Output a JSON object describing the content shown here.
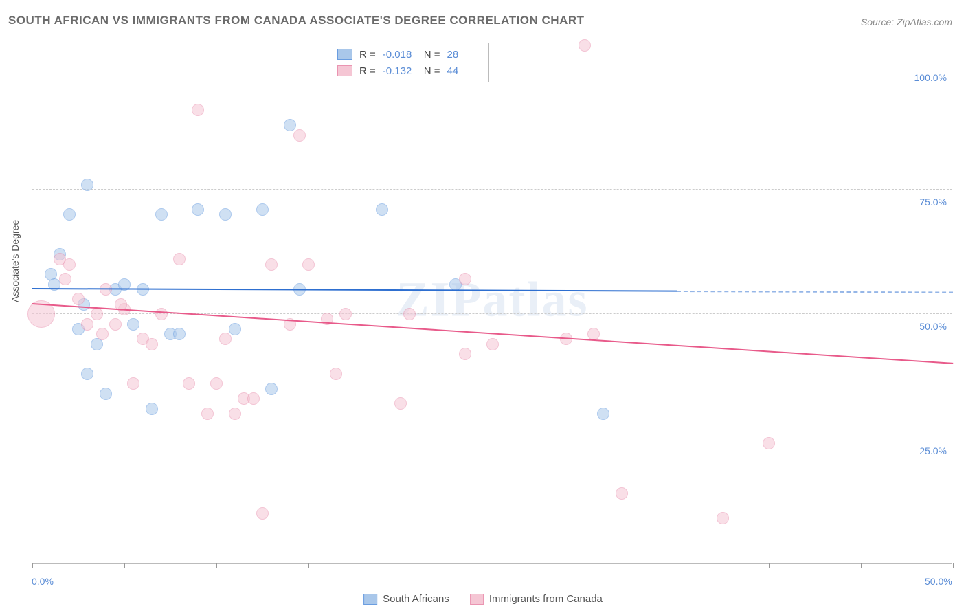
{
  "title": "SOUTH AFRICAN VS IMMIGRANTS FROM CANADA ASSOCIATE'S DEGREE CORRELATION CHART",
  "source": "Source: ZipAtlas.com",
  "watermark": "ZIPatlas",
  "y_axis_title": "Associate's Degree",
  "chart": {
    "type": "scatter",
    "background_color": "#ffffff",
    "grid_color": "#cccccc",
    "axis_color": "#bbbbbb",
    "text_color_axis": "#5b8dd6",
    "title_color": "#6b6b6b",
    "title_fontsize": 17,
    "axis_fontsize": 14,
    "xlim": [
      0,
      50
    ],
    "ylim": [
      0,
      105
    ],
    "y_gridlines": [
      25,
      50,
      75,
      100
    ],
    "y_labels": [
      "25.0%",
      "50.0%",
      "75.0%",
      "100.0%"
    ],
    "x_ticks": [
      0,
      5,
      10,
      15,
      20,
      25,
      30,
      35,
      40,
      45,
      50
    ],
    "x_labels_shown": {
      "0": "0.0%",
      "50": "50.0%"
    },
    "marker_radius": 9,
    "marker_opacity": 0.55,
    "series": [
      {
        "name": "South Africans",
        "color_fill": "#a9c7ea",
        "color_stroke": "#6a9de0",
        "R": "-0.018",
        "N": "28",
        "trend": {
          "x1": 0,
          "y1": 55,
          "x2": 35,
          "y2": 54.5,
          "color": "#2e6fd0",
          "dash_to_x": 50
        },
        "points": [
          {
            "x": 1.0,
            "y": 58
          },
          {
            "x": 1.2,
            "y": 56
          },
          {
            "x": 2.0,
            "y": 70
          },
          {
            "x": 3.0,
            "y": 76
          },
          {
            "x": 2.5,
            "y": 47
          },
          {
            "x": 3.0,
            "y": 38
          },
          {
            "x": 3.5,
            "y": 44
          },
          {
            "x": 4.0,
            "y": 34
          },
          {
            "x": 4.5,
            "y": 55
          },
          {
            "x": 5.0,
            "y": 56
          },
          {
            "x": 6.0,
            "y": 55
          },
          {
            "x": 6.5,
            "y": 31
          },
          {
            "x": 7.0,
            "y": 70
          },
          {
            "x": 7.5,
            "y": 46
          },
          {
            "x": 8.0,
            "y": 46
          },
          {
            "x": 9.0,
            "y": 71
          },
          {
            "x": 10.5,
            "y": 70
          },
          {
            "x": 12.5,
            "y": 71
          },
          {
            "x": 13.0,
            "y": 35
          },
          {
            "x": 14.0,
            "y": 88
          },
          {
            "x": 14.5,
            "y": 55
          },
          {
            "x": 19.0,
            "y": 71
          },
          {
            "x": 23.0,
            "y": 56
          },
          {
            "x": 31.0,
            "y": 30
          },
          {
            "x": 1.5,
            "y": 62
          },
          {
            "x": 5.5,
            "y": 48
          },
          {
            "x": 2.8,
            "y": 52
          },
          {
            "x": 11.0,
            "y": 47
          }
        ]
      },
      {
        "name": "Immigrants from Canada",
        "color_fill": "#f5c6d4",
        "color_stroke": "#ea94b1",
        "R": "-0.132",
        "N": "44",
        "trend": {
          "x1": 0,
          "y1": 52,
          "x2": 50,
          "y2": 40,
          "color": "#e85a8a"
        },
        "points": [
          {
            "x": 0.5,
            "y": 50,
            "r": 20
          },
          {
            "x": 1.5,
            "y": 61
          },
          {
            "x": 2.0,
            "y": 60
          },
          {
            "x": 2.5,
            "y": 53
          },
          {
            "x": 3.0,
            "y": 48
          },
          {
            "x": 3.5,
            "y": 50
          },
          {
            "x": 4.0,
            "y": 55
          },
          {
            "x": 4.5,
            "y": 48
          },
          {
            "x": 5.0,
            "y": 51
          },
          {
            "x": 5.5,
            "y": 36
          },
          {
            "x": 6.0,
            "y": 45
          },
          {
            "x": 6.5,
            "y": 44
          },
          {
            "x": 8.0,
            "y": 61
          },
          {
            "x": 8.5,
            "y": 36
          },
          {
            "x": 9.0,
            "y": 91
          },
          {
            "x": 9.5,
            "y": 30
          },
          {
            "x": 10.0,
            "y": 36
          },
          {
            "x": 10.5,
            "y": 45
          },
          {
            "x": 11.0,
            "y": 30
          },
          {
            "x": 11.5,
            "y": 33
          },
          {
            "x": 12.0,
            "y": 33
          },
          {
            "x": 12.5,
            "y": 10
          },
          {
            "x": 13.0,
            "y": 60
          },
          {
            "x": 14.0,
            "y": 48
          },
          {
            "x": 14.5,
            "y": 86
          },
          {
            "x": 15.0,
            "y": 60
          },
          {
            "x": 16.0,
            "y": 49
          },
          {
            "x": 16.5,
            "y": 38
          },
          {
            "x": 17.0,
            "y": 50
          },
          {
            "x": 20.0,
            "y": 32
          },
          {
            "x": 20.5,
            "y": 50
          },
          {
            "x": 23.5,
            "y": 42
          },
          {
            "x": 23.5,
            "y": 57
          },
          {
            "x": 25.0,
            "y": 44
          },
          {
            "x": 29.0,
            "y": 45
          },
          {
            "x": 30.0,
            "y": 104
          },
          {
            "x": 30.5,
            "y": 46
          },
          {
            "x": 32.0,
            "y": 14
          },
          {
            "x": 37.5,
            "y": 9
          },
          {
            "x": 40.0,
            "y": 24
          },
          {
            "x": 4.8,
            "y": 52
          },
          {
            "x": 1.8,
            "y": 57
          },
          {
            "x": 7.0,
            "y": 50
          },
          {
            "x": 3.8,
            "y": 46
          }
        ]
      }
    ]
  },
  "legend_top": {
    "rows": [
      {
        "swatch_fill": "#a9c7ea",
        "swatch_stroke": "#6a9de0",
        "R_label": "R =",
        "R_val": "-0.018",
        "N_label": "N =",
        "N_val": "28"
      },
      {
        "swatch_fill": "#f5c6d4",
        "swatch_stroke": "#ea94b1",
        "R_label": "R =",
        "R_val": "-0.132",
        "N_label": "N =",
        "N_val": "44"
      }
    ]
  },
  "legend_bottom": {
    "items": [
      {
        "swatch_fill": "#a9c7ea",
        "swatch_stroke": "#6a9de0",
        "label": "South Africans"
      },
      {
        "swatch_fill": "#f5c6d4",
        "swatch_stroke": "#ea94b1",
        "label": "Immigrants from Canada"
      }
    ]
  }
}
